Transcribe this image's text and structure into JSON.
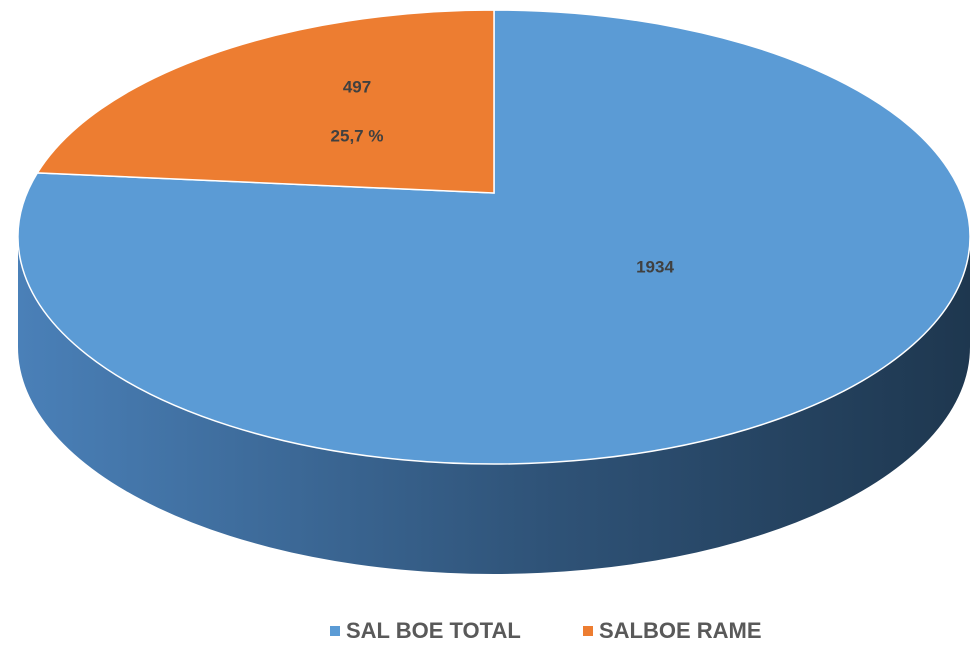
{
  "chart_data": {
    "type": "pie",
    "categories": [
      "SAL BOE TOTAL",
      "SALBOE RAME"
    ],
    "values": [
      1934,
      497
    ],
    "colors": [
      "#5b9bd5",
      "#ed7d31"
    ],
    "annotation": "25,7 %",
    "legend": "bottom"
  }
}
